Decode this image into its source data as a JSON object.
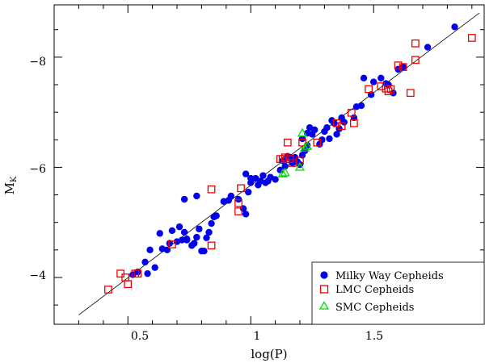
{
  "chart_data": {
    "type": "scatter",
    "title": "",
    "xlabel": "log(P)",
    "ylabel_main": "M",
    "ylabel_sub": "K",
    "xlim": [
      0.2,
      1.95
    ],
    "ylim": [
      -3.15,
      -8.95
    ],
    "y_inverted": true,
    "x_major_ticks": [
      0.5,
      1,
      1.5
    ],
    "x_tick_labels": [
      "0.5",
      "1",
      "1.5"
    ],
    "y_major_ticks": [
      -4,
      -6,
      -8
    ],
    "y_tick_labels": [
      "−4",
      "−6",
      "−8"
    ],
    "x_minor_step": 0.1,
    "y_minor_step": 0.5,
    "grid": false,
    "legend_position": "bottom-right",
    "fit_line": {
      "x": [
        0.3,
        1.93
      ],
      "y": [
        -3.32,
        -8.8
      ]
    },
    "series": [
      {
        "name": "Milky Way Cepheids",
        "marker": "filled-circle",
        "color": "#0000ee",
        "points": [
          [
            0.52,
            -4.05
          ],
          [
            0.54,
            -4.1
          ],
          [
            0.57,
            -4.28
          ],
          [
            0.58,
            -4.07
          ],
          [
            0.59,
            -4.5
          ],
          [
            0.61,
            -4.18
          ],
          [
            0.63,
            -4.8
          ],
          [
            0.64,
            -4.52
          ],
          [
            0.66,
            -4.5
          ],
          [
            0.67,
            -4.62
          ],
          [
            0.68,
            -4.85
          ],
          [
            0.7,
            -4.65
          ],
          [
            0.71,
            -4.92
          ],
          [
            0.72,
            -4.68
          ],
          [
            0.73,
            -4.82
          ],
          [
            0.74,
            -4.68
          ],
          [
            0.74,
            -4.7
          ],
          [
            0.76,
            -4.58
          ],
          [
            0.77,
            -4.62
          ],
          [
            0.78,
            -4.73
          ],
          [
            0.79,
            -4.88
          ],
          [
            0.8,
            -4.48
          ],
          [
            0.81,
            -4.48
          ],
          [
            0.82,
            -4.72
          ],
          [
            0.83,
            -4.82
          ],
          [
            0.84,
            -4.98
          ],
          [
            0.85,
            -5.1
          ],
          [
            0.86,
            -5.12
          ],
          [
            0.73,
            -5.42
          ],
          [
            0.78,
            -5.48
          ],
          [
            0.89,
            -5.38
          ],
          [
            0.91,
            -5.4
          ],
          [
            0.92,
            -5.48
          ],
          [
            0.95,
            -5.42
          ],
          [
            0.97,
            -5.25
          ],
          [
            0.98,
            -5.15
          ],
          [
            0.98,
            -5.88
          ],
          [
            0.99,
            -5.55
          ],
          [
            1.0,
            -5.72
          ],
          [
            1.0,
            -5.8
          ],
          [
            1.02,
            -5.8
          ],
          [
            1.03,
            -5.68
          ],
          [
            1.04,
            -5.75
          ],
          [
            1.05,
            -5.85
          ],
          [
            1.06,
            -5.72
          ],
          [
            1.07,
            -5.75
          ],
          [
            1.08,
            -5.82
          ],
          [
            1.1,
            -5.78
          ],
          [
            1.12,
            -5.95
          ],
          [
            1.13,
            -6.12
          ],
          [
            1.14,
            -6.02
          ],
          [
            1.15,
            -6.2
          ],
          [
            1.16,
            -6.18
          ],
          [
            1.17,
            -6.08
          ],
          [
            1.18,
            -6.18
          ],
          [
            1.19,
            -6.1
          ],
          [
            1.2,
            -6.05
          ],
          [
            1.21,
            -6.22
          ],
          [
            1.21,
            -6.52
          ],
          [
            1.22,
            -6.3
          ],
          [
            1.23,
            -6.4
          ],
          [
            1.23,
            -6.62
          ],
          [
            1.24,
            -6.72
          ],
          [
            1.25,
            -6.6
          ],
          [
            1.26,
            -6.68
          ],
          [
            1.28,
            -6.42
          ],
          [
            1.29,
            -6.5
          ],
          [
            1.3,
            -6.65
          ],
          [
            1.31,
            -6.72
          ],
          [
            1.32,
            -6.52
          ],
          [
            1.33,
            -6.85
          ],
          [
            1.34,
            -6.8
          ],
          [
            1.35,
            -6.6
          ],
          [
            1.36,
            -6.7
          ],
          [
            1.37,
            -6.9
          ],
          [
            1.38,
            -6.82
          ],
          [
            1.42,
            -6.9
          ],
          [
            1.43,
            -7.1
          ],
          [
            1.45,
            -7.12
          ],
          [
            1.46,
            -7.62
          ],
          [
            1.49,
            -7.32
          ],
          [
            1.5,
            -7.55
          ],
          [
            1.53,
            -7.62
          ],
          [
            1.55,
            -7.52
          ],
          [
            1.56,
            -7.5
          ],
          [
            1.58,
            -7.35
          ],
          [
            1.6,
            -7.78
          ],
          [
            1.62,
            -7.82
          ],
          [
            1.72,
            -8.18
          ],
          [
            1.83,
            -8.55
          ]
        ]
      },
      {
        "name": "LMC Cepheids",
        "marker": "open-square",
        "color": "#ee0000",
        "points": [
          [
            0.42,
            -3.78
          ],
          [
            0.47,
            -4.07
          ],
          [
            0.49,
            -4.0
          ],
          [
            0.5,
            -3.88
          ],
          [
            0.53,
            -4.07
          ],
          [
            0.54,
            -4.07
          ],
          [
            0.68,
            -4.6
          ],
          [
            0.84,
            -5.6
          ],
          [
            0.84,
            -4.58
          ],
          [
            0.95,
            -5.35
          ],
          [
            0.95,
            -5.2
          ],
          [
            0.96,
            -5.62
          ],
          [
            1.12,
            -6.15
          ],
          [
            1.13,
            -6.15
          ],
          [
            1.14,
            -6.18
          ],
          [
            1.15,
            -6.45
          ],
          [
            1.16,
            -6.15
          ],
          [
            1.17,
            -6.08
          ],
          [
            1.2,
            -6.12
          ],
          [
            1.21,
            -6.45
          ],
          [
            1.27,
            -6.45
          ],
          [
            1.35,
            -6.8
          ],
          [
            1.37,
            -6.75
          ],
          [
            1.41,
            -6.99
          ],
          [
            1.42,
            -6.8
          ],
          [
            1.48,
            -7.42
          ],
          [
            1.53,
            -7.47
          ],
          [
            1.55,
            -7.43
          ],
          [
            1.56,
            -7.38
          ],
          [
            1.57,
            -7.42
          ],
          [
            1.6,
            -7.85
          ],
          [
            1.62,
            -7.82
          ],
          [
            1.65,
            -7.35
          ],
          [
            1.67,
            -8.25
          ],
          [
            1.67,
            -7.95
          ],
          [
            1.9,
            -8.35
          ]
        ]
      },
      {
        "name": "SMC Cepheids",
        "marker": "open-triangle",
        "color": "#00dd00",
        "points": [
          [
            1.13,
            -5.88
          ],
          [
            1.14,
            -5.9
          ],
          [
            1.2,
            -6.0
          ],
          [
            1.21,
            -6.62
          ],
          [
            1.22,
            -6.35
          ],
          [
            1.23,
            -6.38
          ]
        ]
      }
    ]
  }
}
